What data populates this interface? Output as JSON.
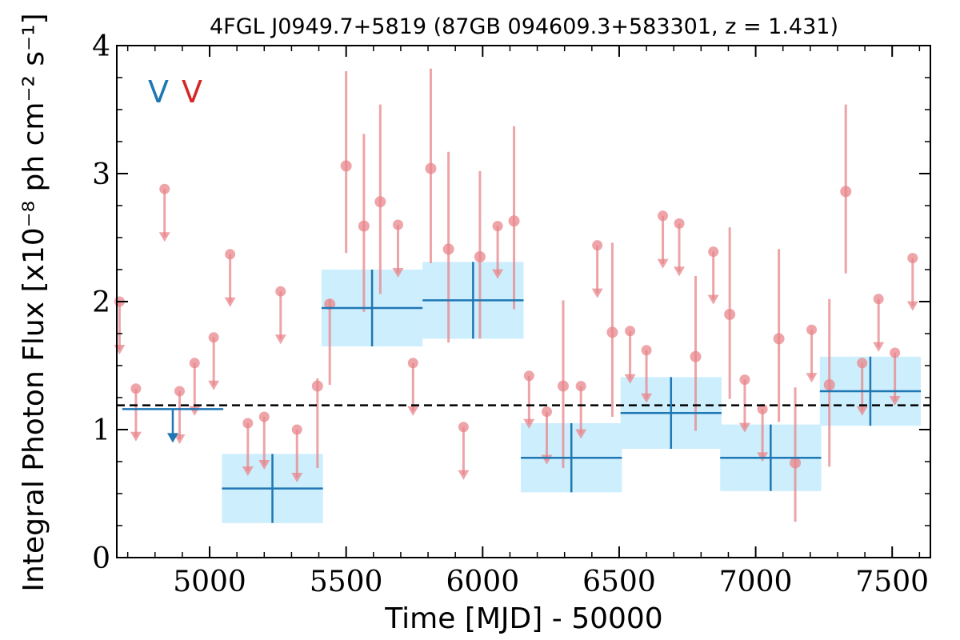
{
  "chart_data": {
    "type": "scatter",
    "title": "4FGL J0949.7+5819 (87GB 094609.3+583301, z = 1.431)",
    "xlabel": "Time [MJD] - 50000",
    "ylabel": "Integral Photon Flux [x10⁻⁸ ph cm⁻² s⁻¹]",
    "xlim": [
      4660,
      7640
    ],
    "ylim": [
      0,
      4
    ],
    "x_ticks": [
      5000,
      5500,
      6000,
      6500,
      7000,
      7500
    ],
    "y_ticks": [
      0,
      1,
      2,
      3,
      4
    ],
    "x_tick_labels": [
      "5000",
      "5500",
      "6000",
      "6500",
      "7000",
      "7500"
    ],
    "y_tick_labels": [
      "0",
      "1",
      "2",
      "3",
      "4"
    ],
    "mean_flux": 1.19,
    "legend": {
      "placement": "top-left",
      "entries": [
        {
          "label": "V",
          "color": "#1f77b4"
        },
        {
          "label": "V",
          "color": "#d62728"
        }
      ]
    },
    "colors": {
      "blue_series": "#1f77b4",
      "blue_box": "#cdeefc",
      "red_series": "#e8868b",
      "mean_line": "#000000"
    },
    "series": [
      {
        "kind": "binned_detections",
        "points": [
          {
            "x": 5230,
            "xerr": 185,
            "y": 0.54,
            "yerr": 0.27
          },
          {
            "x": 5595,
            "xerr": 185,
            "y": 1.95,
            "yerr": 0.3
          },
          {
            "x": 5965,
            "xerr": 185,
            "y": 2.01,
            "yerr": 0.3
          },
          {
            "x": 6325,
            "xerr": 185,
            "y": 0.78,
            "yerr": 0.27
          },
          {
            "x": 6690,
            "xerr": 185,
            "y": 1.13,
            "yerr": 0.28
          },
          {
            "x": 7055,
            "xerr": 185,
            "y": 0.78,
            "yerr": 0.26
          },
          {
            "x": 7420,
            "xerr": 185,
            "y": 1.3,
            "yerr": 0.27
          }
        ]
      },
      {
        "kind": "binned_upper_limits",
        "points": [
          {
            "x": 4865,
            "xerr": 185,
            "y": 1.16
          }
        ]
      },
      {
        "kind": "fine_detections",
        "points": [
          {
            "x": 5395,
            "y": 1.34,
            "ylo": 0.7,
            "yhi": 1.4
          },
          {
            "x": 5440,
            "y": 1.98,
            "ylo": 1.35,
            "yhi": 2.02
          },
          {
            "x": 5500,
            "y": 3.06,
            "ylo": 2.38,
            "yhi": 3.8
          },
          {
            "x": 5565,
            "y": 2.59,
            "ylo": 1.92,
            "yhi": 3.31
          },
          {
            "x": 5625,
            "y": 2.78,
            "ylo": 2.06,
            "yhi": 3.54
          },
          {
            "x": 5810,
            "y": 3.04,
            "ylo": 2.3,
            "yhi": 3.82
          },
          {
            "x": 5875,
            "y": 2.41,
            "ylo": 1.68,
            "yhi": 3.17
          },
          {
            "x": 5990,
            "y": 2.35,
            "ylo": 1.71,
            "yhi": 3.02
          },
          {
            "x": 6115,
            "y": 2.63,
            "ylo": 1.94,
            "yhi": 3.37
          },
          {
            "x": 6295,
            "y": 1.34,
            "ylo": 0.7,
            "yhi": 2.01
          },
          {
            "x": 6475,
            "y": 1.76,
            "ylo": 1.1,
            "yhi": 2.46
          },
          {
            "x": 6780,
            "y": 1.57,
            "ylo": 0.99,
            "yhi": 2.2
          },
          {
            "x": 6905,
            "y": 1.9,
            "ylo": 1.24,
            "yhi": 2.58
          },
          {
            "x": 7085,
            "y": 1.71,
            "ylo": 1.06,
            "yhi": 2.41
          },
          {
            "x": 7145,
            "y": 0.74,
            "ylo": 0.28,
            "yhi": 1.33
          },
          {
            "x": 7270,
            "y": 1.35,
            "ylo": 0.71,
            "yhi": 2.02
          },
          {
            "x": 7330,
            "y": 2.86,
            "ylo": 2.22,
            "yhi": 3.54
          }
        ]
      },
      {
        "kind": "fine_upper_limits",
        "points": [
          {
            "x": 4670,
            "y": 2.0
          },
          {
            "x": 4730,
            "y": 1.32
          },
          {
            "x": 4835,
            "y": 2.88
          },
          {
            "x": 4890,
            "y": 1.3
          },
          {
            "x": 4945,
            "y": 1.52
          },
          {
            "x": 5015,
            "y": 1.72
          },
          {
            "x": 5075,
            "y": 2.37
          },
          {
            "x": 5140,
            "y": 1.05
          },
          {
            "x": 5200,
            "y": 1.1
          },
          {
            "x": 5260,
            "y": 2.08
          },
          {
            "x": 5320,
            "y": 1.0
          },
          {
            "x": 5690,
            "y": 2.6
          },
          {
            "x": 5745,
            "y": 1.52
          },
          {
            "x": 5930,
            "y": 1.02
          },
          {
            "x": 6055,
            "y": 2.59
          },
          {
            "x": 6170,
            "y": 1.42
          },
          {
            "x": 6235,
            "y": 1.14
          },
          {
            "x": 6360,
            "y": 1.34
          },
          {
            "x": 6420,
            "y": 2.44
          },
          {
            "x": 6540,
            "y": 1.77
          },
          {
            "x": 6600,
            "y": 1.62
          },
          {
            "x": 6660,
            "y": 2.67
          },
          {
            "x": 6720,
            "y": 2.61
          },
          {
            "x": 6845,
            "y": 2.39
          },
          {
            "x": 6960,
            "y": 1.39
          },
          {
            "x": 7025,
            "y": 1.16
          },
          {
            "x": 7205,
            "y": 1.78
          },
          {
            "x": 7390,
            "y": 1.52
          },
          {
            "x": 7450,
            "y": 2.02
          },
          {
            "x": 7510,
            "y": 1.6
          },
          {
            "x": 7575,
            "y": 2.34
          }
        ]
      }
    ]
  }
}
